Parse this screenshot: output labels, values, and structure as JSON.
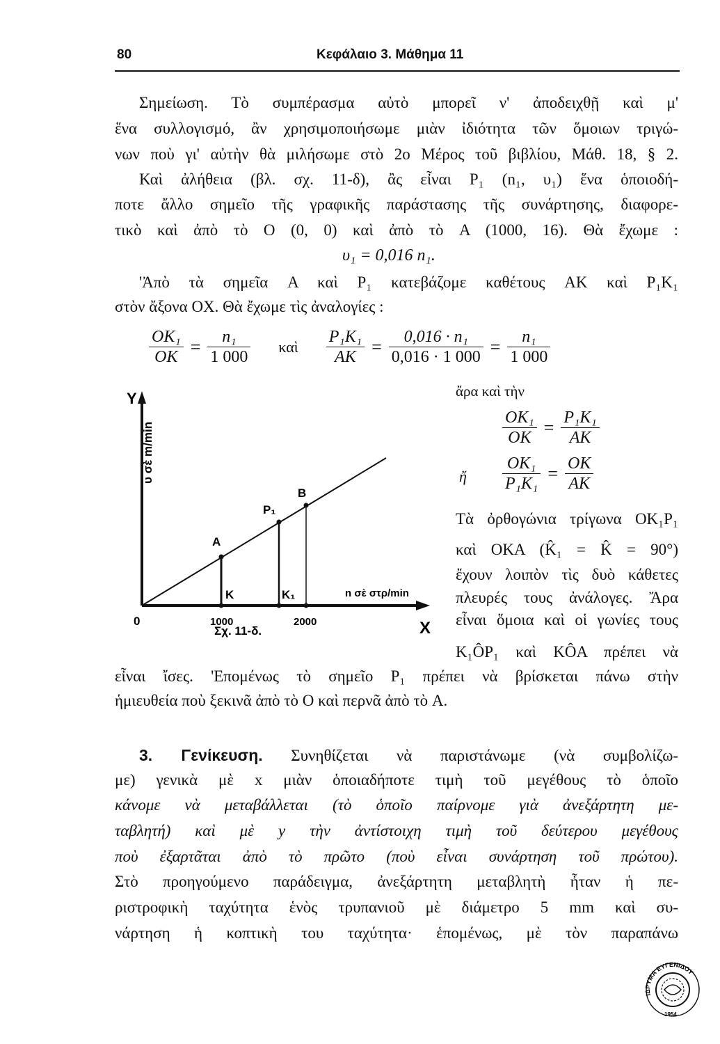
{
  "header": {
    "page_number": "80",
    "running_title": "Κεφάλαιο 3. Μάθημα 11"
  },
  "para1": [
    "Σημείωση. Τὸ συμπέρασμα αὐτὸ μπορεῖ ν' ἀποδειχθῇ καὶ μ'",
    "ἕνα συλλογισμό, ἂν χρησιμοποιήσωμε μιὰν ἰδιότητα τῶν ὅμοιων τριγώ-",
    "νων ποὺ γι' αὐτὴν θὰ μιλήσωμε στὸ 2ο Μέρος τοῦ βιβλίου, Μάθ. 18, § 2."
  ],
  "para2": [
    "Καὶ ἀλήθεια (βλ. σχ. 11-δ), ἂς εἶναι P₁ (n₁, υ₁) ἕνα ὁποιοδή-",
    "ποτε ἄλλο σημεῖο τῆς γραφικῆς παράστασης τῆς συνάρτησης, διαφορε-",
    "τικὸ καὶ ἀπὸ τὸ O (0, 0) καὶ ἀπὸ τὸ A (1000, 16). Θὰ ἔχωμε :"
  ],
  "equation1": "υ₁ = 0,016 n₁.",
  "para3": [
    "'Ἀπὸ τὰ σημεῖα A καὶ P₁ κατεβάζομε καθέτους AK καὶ P₁K₁",
    "στὸν ἄξονα OX. Θὰ ἔχωμε τὶς ἀναλογίες :"
  ],
  "proportions": {
    "f1_num": "OK₁",
    "f1_den": "OK",
    "f2_num": "n₁",
    "f2_den": "1 000",
    "and": "καὶ",
    "f3_num": "P₁K₁",
    "f3_den": "AK",
    "f4_num": "0,016 · n₁",
    "f4_den": "0,016 · 1 000",
    "f5_num": "n₁",
    "f5_den": "1 000",
    "eq": "="
  },
  "right_column": {
    "line1": "ἄρα καὶ τὴν",
    "eq2": {
      "a_num": "OK₁",
      "a_den": "OK",
      "b_num": "P₁K₁",
      "b_den": "AK"
    },
    "or": "ἤ",
    "eq3": {
      "a_num": "OK₁",
      "a_den": "P₁K₁",
      "b_num": "OK",
      "b_den": "AK"
    },
    "lines": [
      "Τὰ ὀρθογώνια τρίγωνα OK₁P₁",
      "καὶ OKA (K̂₁ = K̂ = 90°)",
      "ἔχουν λοιπὸν τὶς δυὸ κάθετες",
      "πλευρές τους ἀνάλογες. Ἄρα",
      "εἶναι ὅμοια καὶ οἱ γωνίες τους",
      "K₁ÔP₁ καὶ KÔA πρέπει νὰ"
    ]
  },
  "para4": [
    "εἶναι ἴσες. 'Επομένως τὸ σημεῖο P₁ πρέπει νὰ βρίσκεται πάνω στὴν",
    "ἡμιευθεία ποὺ ξεκινᾶ ἀπὸ τὸ O καὶ περνᾶ ἀπὸ τὸ A."
  ],
  "figure": {
    "caption": "Σχ. 11-δ.",
    "y_axis_label": "Y",
    "y_unit_label": "υ σὲ m/min",
    "x_axis_label": "X",
    "x_unit_label": "n σὲ στρ/min",
    "origin_label": "0",
    "x_ticks": [
      "1000",
      "2000"
    ],
    "points": [
      "A",
      "P₁",
      "B"
    ],
    "feet": [
      "K",
      "K₁"
    ]
  },
  "section3": {
    "heading": "3. Γενίκευση.",
    "lines": [
      "Συνηθίζεται νὰ παριστάνωμε (νὰ συμβολίζω-",
      "με) γενικὰ μὲ x μιὰν ὁποιαδήποτε τιμὴ τοῦ μεγέθους τὸ ὁποῖο",
      "κάνομε νὰ μεταβάλλεται (τὸ ὁποῖο παίρνομε γιὰ ἀνεξάρτητη με-",
      "ταβλητή) καὶ μὲ y τὴν ἀντίστοιχη τιμὴ τοῦ δεύτερου μεγέθους",
      "ποὺ ἐξαρτᾶται ἀπὸ τὸ πρῶτο (ποὺ εἶναι συνάρτηση τοῦ πρώτου).",
      "Στὸ προηγούμενο παράδειγμα, ἀνεξάρτητη μεταβλητὴ ἦταν ἡ πε-",
      "ριστροφικὴ ταχύτητα ἑνὸς τρυπανιοῦ μὲ διάμετρο 5 mm καὶ συ-",
      "νάρτηση ἡ κοπτικὴ του ταχύτητα· ἑπομένως, μὲ τὸν παραπάνω"
    ]
  },
  "seal": {
    "text": "ΙΔΡΥΜΑ ΕΥΓΕΝΙΔΟΥ",
    "year": "1954"
  }
}
